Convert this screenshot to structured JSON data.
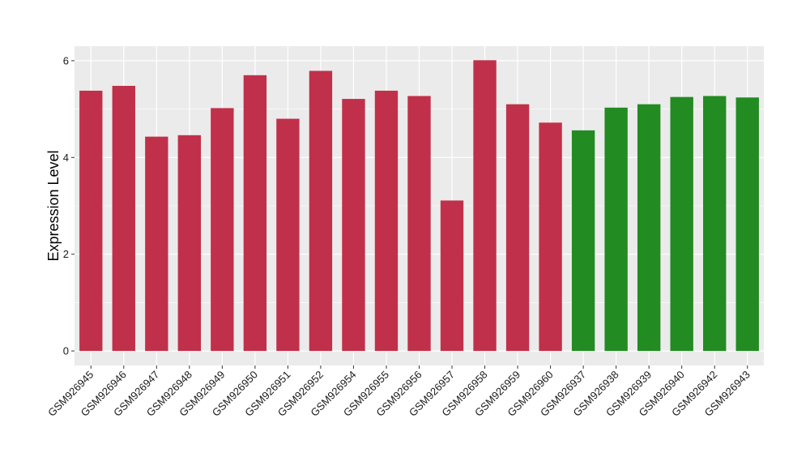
{
  "chart_data": {
    "type": "bar",
    "title": "",
    "xlabel": "",
    "ylabel": "Expression Level",
    "ylim": [
      -0.3,
      6.3
    ],
    "yticks": [
      0,
      2,
      4,
      6
    ],
    "grid": true,
    "legend": "none",
    "background_color": "#ebebeb",
    "grid_color": "#ffffff",
    "categories": [
      "GSM926945",
      "GSM926946",
      "GSM926947",
      "GSM926948",
      "GSM926949",
      "GSM926950",
      "GSM926951",
      "GSM926952",
      "GSM926954",
      "GSM926955",
      "GSM926956",
      "GSM926957",
      "GSM926958",
      "GSM926959",
      "GSM926960",
      "GSM926937",
      "GSM926938",
      "GSM926939",
      "GSM926940",
      "GSM926942",
      "GSM926943"
    ],
    "values": [
      5.38,
      5.48,
      4.43,
      4.46,
      5.02,
      5.7,
      4.8,
      5.79,
      5.21,
      5.38,
      5.27,
      3.11,
      6.01,
      5.1,
      4.72,
      4.56,
      5.03,
      5.1,
      5.25,
      5.27,
      5.24
    ],
    "groups": [
      "red",
      "red",
      "red",
      "red",
      "red",
      "red",
      "red",
      "red",
      "red",
      "red",
      "red",
      "red",
      "red",
      "red",
      "red",
      "green",
      "green",
      "green",
      "green",
      "green",
      "green"
    ],
    "colors": {
      "red": "#c1304a",
      "green": "#228b22"
    }
  }
}
